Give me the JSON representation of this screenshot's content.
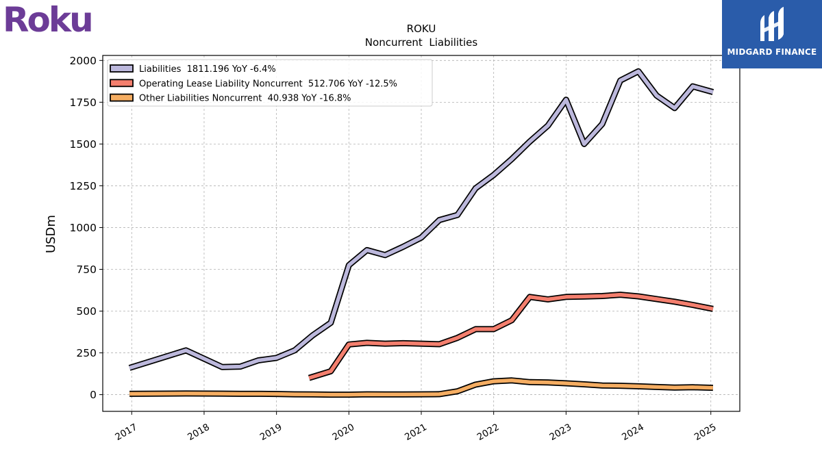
{
  "brand": {
    "company_logo": "Roku",
    "publisher_logo": "MIDGARD FINANCE"
  },
  "chart_data": {
    "type": "line",
    "title": "ROKU",
    "subtitle": "Noncurrent  Liabilities",
    "xlabel": "",
    "ylabel": "USDm",
    "ylim": [
      -100,
      2030
    ],
    "xlim": [
      2016.6,
      2025.4
    ],
    "yticks": [
      0,
      250,
      500,
      750,
      1000,
      1250,
      1500,
      1750,
      2000
    ],
    "xticks": [
      2017,
      2018,
      2019,
      2020,
      2021,
      2022,
      2023,
      2024,
      2025
    ],
    "grid": true,
    "legend_position": "top-left",
    "series": [
      {
        "name": "Liabilities",
        "legend": "Liabilities  1811.196 YoY -6.4%",
        "color": "#bcb8dc",
        "points": [
          [
            2016.97,
            160
          ],
          [
            2017.75,
            265
          ],
          [
            2018.25,
            165
          ],
          [
            2018.5,
            168
          ],
          [
            2018.75,
            205
          ],
          [
            2019.0,
            220
          ],
          [
            2019.25,
            265
          ],
          [
            2019.5,
            355
          ],
          [
            2019.75,
            430
          ],
          [
            2020.0,
            775
          ],
          [
            2020.25,
            865
          ],
          [
            2020.5,
            835
          ],
          [
            2020.75,
            885
          ],
          [
            2021.0,
            940
          ],
          [
            2021.25,
            1045
          ],
          [
            2021.5,
            1075
          ],
          [
            2021.75,
            1235
          ],
          [
            2022.0,
            1315
          ],
          [
            2022.25,
            1410
          ],
          [
            2022.5,
            1515
          ],
          [
            2022.75,
            1610
          ],
          [
            2023.0,
            1765
          ],
          [
            2023.25,
            1500
          ],
          [
            2023.5,
            1620
          ],
          [
            2023.75,
            1880
          ],
          [
            2024.0,
            1935
          ],
          [
            2024.25,
            1790
          ],
          [
            2024.5,
            1715
          ],
          [
            2024.75,
            1845
          ],
          [
            2025.03,
            1811
          ]
        ]
      },
      {
        "name": "Operating Lease Liability Noncurrent",
        "legend": "Operating Lease Liability Noncurrent  512.706 YoY -12.5%",
        "color": "#f47f6e",
        "points": [
          [
            2019.45,
            100
          ],
          [
            2019.75,
            140
          ],
          [
            2020.0,
            300
          ],
          [
            2020.25,
            310
          ],
          [
            2020.5,
            305
          ],
          [
            2020.75,
            308
          ],
          [
            2021.0,
            305
          ],
          [
            2021.25,
            302
          ],
          [
            2021.5,
            340
          ],
          [
            2021.75,
            392
          ],
          [
            2022.0,
            392
          ],
          [
            2022.25,
            445
          ],
          [
            2022.5,
            585
          ],
          [
            2022.75,
            570
          ],
          [
            2023.0,
            585
          ],
          [
            2023.25,
            587
          ],
          [
            2023.5,
            590
          ],
          [
            2023.75,
            598
          ],
          [
            2024.0,
            588
          ],
          [
            2024.25,
            572
          ],
          [
            2024.5,
            556
          ],
          [
            2024.75,
            537
          ],
          [
            2025.03,
            513
          ]
        ]
      },
      {
        "name": "Other Liabilities Noncurrent",
        "legend": "Other Liabilities Noncurrent  40.938 YoY -16.8%",
        "color": "#f5ad62",
        "points": [
          [
            2016.97,
            5
          ],
          [
            2017.75,
            7
          ],
          [
            2018.25,
            6
          ],
          [
            2018.5,
            5
          ],
          [
            2018.75,
            5
          ],
          [
            2019.0,
            4
          ],
          [
            2019.25,
            2
          ],
          [
            2019.5,
            1
          ],
          [
            2019.75,
            0
          ],
          [
            2020.0,
            0
          ],
          [
            2020.25,
            2
          ],
          [
            2020.5,
            1
          ],
          [
            2020.75,
            1
          ],
          [
            2021.0,
            2
          ],
          [
            2021.25,
            3
          ],
          [
            2021.5,
            20
          ],
          [
            2021.75,
            60
          ],
          [
            2022.0,
            80
          ],
          [
            2022.25,
            85
          ],
          [
            2022.5,
            75
          ],
          [
            2022.75,
            73
          ],
          [
            2023.0,
            68
          ],
          [
            2023.25,
            62
          ],
          [
            2023.5,
            55
          ],
          [
            2023.75,
            53
          ],
          [
            2024.0,
            50
          ],
          [
            2024.25,
            46
          ],
          [
            2024.5,
            42
          ],
          [
            2024.75,
            44
          ],
          [
            2025.03,
            41
          ]
        ]
      }
    ]
  }
}
